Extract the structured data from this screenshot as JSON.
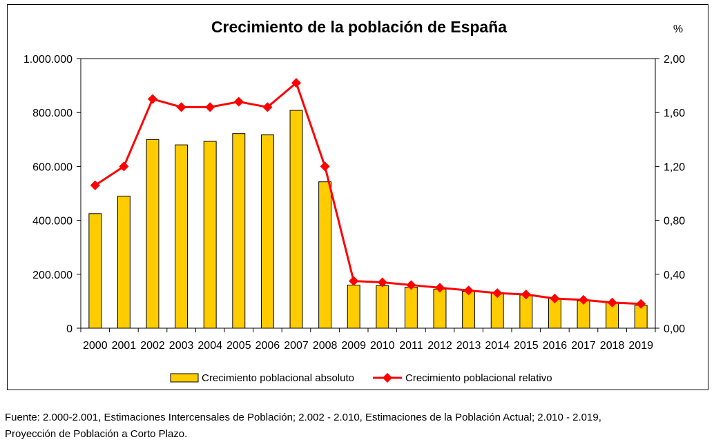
{
  "chart_data": {
    "type": "bar",
    "title": "Crecimiento de la población de España",
    "y2_unit_label": "%",
    "categories": [
      "2000",
      "2001",
      "2002",
      "2003",
      "2004",
      "2005",
      "2006",
      "2007",
      "2008",
      "2009",
      "2010",
      "2011",
      "2012",
      "2013",
      "2014",
      "2015",
      "2016",
      "2017",
      "2018",
      "2019"
    ],
    "series": [
      {
        "name": "Crecimiento poblacional absoluto",
        "type": "bar",
        "axis": "left",
        "color": "#FFCC00",
        "values": [
          425000,
          490000,
          700000,
          680000,
          693000,
          722000,
          717000,
          808000,
          543000,
          160000,
          158000,
          152000,
          145000,
          137000,
          130000,
          123000,
          110000,
          101000,
          94000,
          85000
        ]
      },
      {
        "name": "Crecimiento poblacional relativo",
        "type": "line",
        "axis": "right",
        "color": "#FF0000",
        "values": [
          1.06,
          1.2,
          1.7,
          1.64,
          1.64,
          1.68,
          1.64,
          1.82,
          1.2,
          0.35,
          0.34,
          0.32,
          0.3,
          0.28,
          0.26,
          0.25,
          0.22,
          0.21,
          0.19,
          0.18
        ]
      }
    ],
    "ylim": [
      0,
      1000000
    ],
    "y2lim": [
      0,
      2.0
    ],
    "y_ticks": [
      "0",
      "200.000",
      "400.000",
      "600.000",
      "800.000",
      "1.000.000"
    ],
    "y2_ticks": [
      "0,00",
      "0,40",
      "0,80",
      "1,20",
      "1,60",
      "2,00"
    ],
    "grid": false,
    "legend_position": "bottom"
  },
  "source_note": {
    "line1": "Fuente: 2.000-2.001, Estimaciones Intercensales de Población; 2.002 - 2.010, Estimaciones de la Población Actual; 2.010 - 2.019,",
    "line2": "Proyección de Población a Corto Plazo."
  }
}
